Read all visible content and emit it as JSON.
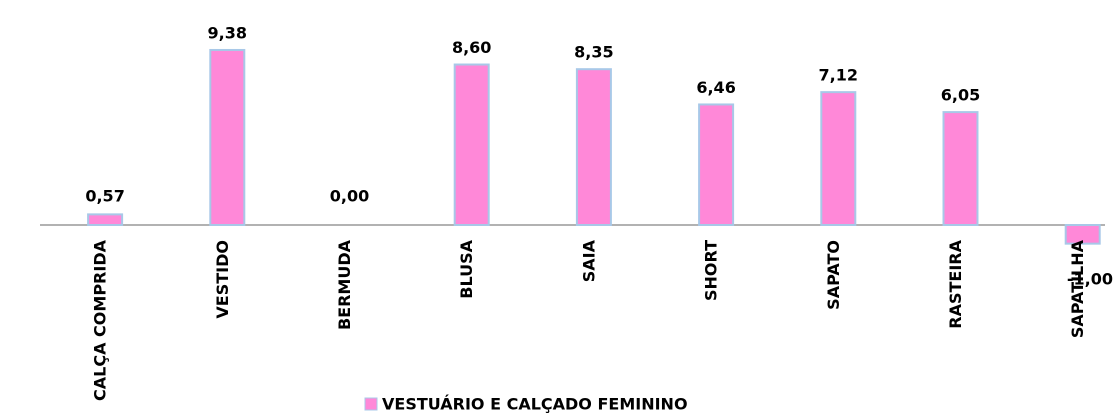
{
  "chart_data": {
    "type": "bar",
    "categories": [
      "CALÇA COMPRIDA",
      "VESTIDO",
      "BERMUDA",
      "BLUSA",
      "SAIA",
      "SHORT",
      "SAPATO",
      "RASTEIRA",
      "SAPATILHA"
    ],
    "series": [
      {
        "name": "VESTUÁRIO E CALÇADO FEMININO",
        "color": "#ff88d8",
        "values": [
          0.57,
          9.38,
          0.0,
          8.6,
          8.35,
          6.46,
          7.12,
          6.05,
          -1.0
        ],
        "value_labels": [
          "0,57",
          "9,38",
          "0,00",
          "8,60",
          "8,35",
          "6,46",
          "7,12",
          "6,05",
          "-1,00"
        ]
      }
    ]
  }
}
